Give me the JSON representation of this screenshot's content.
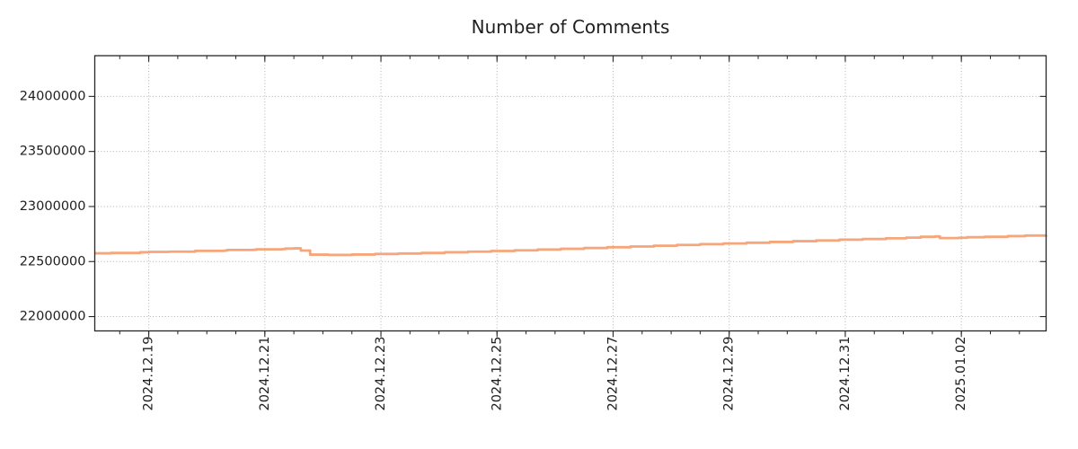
{
  "chart_data": {
    "type": "line",
    "title": "Number of Comments",
    "grid": "dotted",
    "legend": "none",
    "colors": {
      "line": "#f6a67a",
      "grid": "#b0b0b0",
      "axis": "#262626",
      "text": "#1f1f1f"
    },
    "x_axis": {
      "unit": "days since 2024-12-18 00:00",
      "range": [
        0.07,
        16.46
      ],
      "minor_tick_interval": 0.5,
      "major_ticks": [
        {
          "t": 1,
          "label": "2024.12.19"
        },
        {
          "t": 3,
          "label": "2024.12.21"
        },
        {
          "t": 5,
          "label": "2024.12.23"
        },
        {
          "t": 7,
          "label": "2024.12.25"
        },
        {
          "t": 9,
          "label": "2024.12.27"
        },
        {
          "t": 11,
          "label": "2024.12.29"
        },
        {
          "t": 13,
          "label": "2024.12.31"
        },
        {
          "t": 15,
          "label": "2025.01.02"
        }
      ]
    },
    "y_axis": {
      "range": [
        21870000,
        24370000
      ],
      "ticks": [
        {
          "v": 22000000,
          "label": "22000000"
        },
        {
          "v": 22500000,
          "label": "22500000"
        },
        {
          "v": 23000000,
          "label": "23000000"
        },
        {
          "v": 23500000,
          "label": "23500000"
        },
        {
          "v": 24000000,
          "label": "24000000"
        }
      ]
    },
    "series": [
      {
        "name": "Number of Comments",
        "draw_style": "step-after",
        "points": [
          [
            0.07,
            22575000
          ],
          [
            0.35,
            22578000
          ],
          [
            0.85,
            22584000
          ],
          [
            1.0,
            22588000
          ],
          [
            1.35,
            22590000
          ],
          [
            1.8,
            22597000
          ],
          [
            2.3,
            22600000
          ],
          [
            2.35,
            22605000
          ],
          [
            2.8,
            22607000
          ],
          [
            2.85,
            22611000
          ],
          [
            3.3,
            22613000
          ],
          [
            3.35,
            22618000
          ],
          [
            3.5,
            22620000
          ],
          [
            3.62,
            22600000
          ],
          [
            3.78,
            22563000
          ],
          [
            4.1,
            22560000
          ],
          [
            4.5,
            22564000
          ],
          [
            4.9,
            22569000
          ],
          [
            5.3,
            22573000
          ],
          [
            5.7,
            22578000
          ],
          [
            6.1,
            22584000
          ],
          [
            6.5,
            22590000
          ],
          [
            6.9,
            22596000
          ],
          [
            7.3,
            22602000
          ],
          [
            7.7,
            22609000
          ],
          [
            8.1,
            22616000
          ],
          [
            8.5,
            22623000
          ],
          [
            8.9,
            22630000
          ],
          [
            9.3,
            22637000
          ],
          [
            9.7,
            22644000
          ],
          [
            10.1,
            22651000
          ],
          [
            10.5,
            22658000
          ],
          [
            10.9,
            22664000
          ],
          [
            11.3,
            22671000
          ],
          [
            11.7,
            22678000
          ],
          [
            12.1,
            22685000
          ],
          [
            12.5,
            22692000
          ],
          [
            12.9,
            22699000
          ],
          [
            13.3,
            22705000
          ],
          [
            13.7,
            22711000
          ],
          [
            14.05,
            22717000
          ],
          [
            14.3,
            22725000
          ],
          [
            14.55,
            22728000
          ],
          [
            14.63,
            22713000
          ],
          [
            14.95,
            22716000
          ],
          [
            15.1,
            22721000
          ],
          [
            15.4,
            22725000
          ],
          [
            15.8,
            22731000
          ],
          [
            16.1,
            22736000
          ],
          [
            16.46,
            22740000
          ]
        ]
      }
    ]
  }
}
